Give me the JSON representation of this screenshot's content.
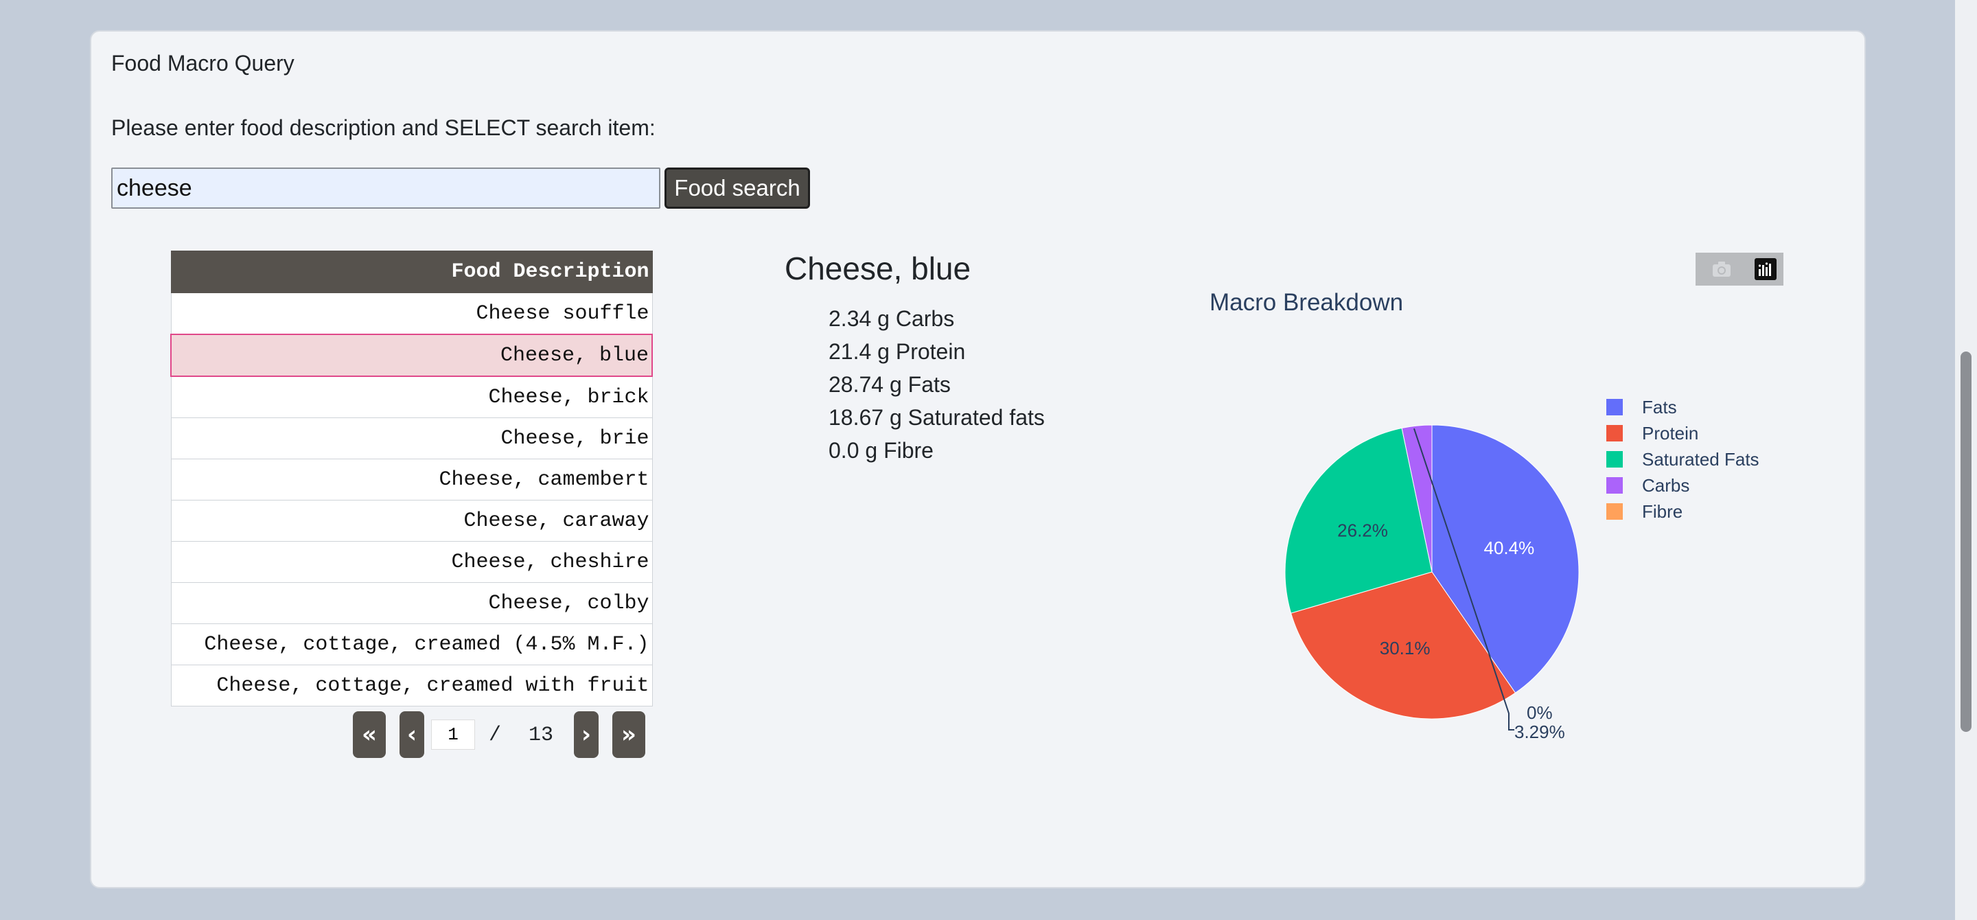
{
  "app": {
    "title": "Food Macro Query",
    "prompt": "Please enter food description and SELECT search item:"
  },
  "search": {
    "value": "cheese",
    "button_label": "Food search"
  },
  "table": {
    "header": "Food Description",
    "rows": [
      "Cheese souffle",
      "Cheese, blue",
      "Cheese, brick",
      "Cheese, brie",
      "Cheese, camembert",
      "Cheese, caraway",
      "Cheese, cheshire",
      "Cheese, colby",
      "Cheese, cottage, creamed (4.5% M.F.)",
      "Cheese, cottage, creamed with fruit"
    ],
    "selected_index": 1
  },
  "pagination": {
    "first_icon": "double-chevron-left",
    "prev_icon": "chevron-left",
    "current_page": "1",
    "separator": "/",
    "total_pages": "13",
    "next_icon": "chevron-right",
    "last_icon": "double-chevron-right"
  },
  "detail": {
    "food_name": "Cheese, blue",
    "nutrients": [
      "2.34 g Carbs",
      "21.4 g Protein",
      "28.74 g Fats",
      "18.67 g Saturated fats",
      "0.0 g Fibre"
    ]
  },
  "toolbar": {
    "icons": [
      "camera-icon",
      "plotly-logo-icon"
    ]
  },
  "colors": {
    "header_bg": "#56524d",
    "selected_row": "#f2d7da",
    "selected_border": "#e0488a",
    "accent": "#4c4a46"
  },
  "chart_data": {
    "type": "pie",
    "title": "Macro Breakdown",
    "labels": [
      "Fats",
      "Protein",
      "Saturated Fats",
      "Carbs",
      "Fibre"
    ],
    "values": [
      28.74,
      21.4,
      18.67,
      2.34,
      0.0
    ],
    "percent_labels": [
      "40.4%",
      "30.1%",
      "26.2%",
      "3.29%",
      "0%"
    ],
    "colors": [
      "#636efa",
      "#ef553b",
      "#00cc96",
      "#ab63fa",
      "#ffa15a"
    ],
    "legend_position": "right"
  }
}
